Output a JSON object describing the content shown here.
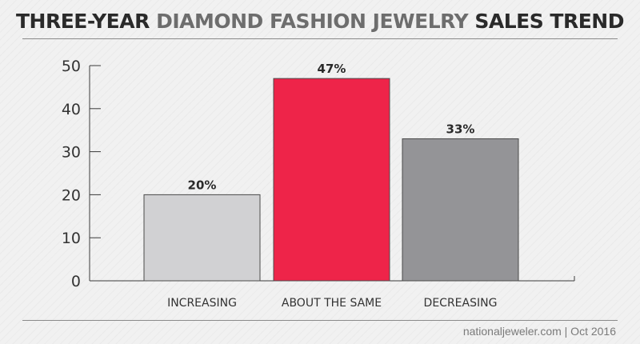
{
  "title": {
    "part1": "THREE-YEAR",
    "part2": "DIAMOND FASHION JEWELRY",
    "part3": "SALES TREND"
  },
  "footer": {
    "source": "nationaljeweler.com | Oct 2016"
  },
  "colors": {
    "increasing": "#d1d1d3",
    "about_the_same": "#ee2449",
    "decreasing": "#949497",
    "title_dark": "#2a2a2a",
    "title_gray": "#6d6d6d"
  },
  "chart_data": {
    "type": "bar",
    "title": "THREE-YEAR DIAMOND FASHION JEWELRY SALES TREND",
    "categories": [
      "INCREASING",
      "ABOUT THE SAME",
      "DECREASING"
    ],
    "values": [
      20,
      47,
      33
    ],
    "data_labels": [
      "20%",
      "47%",
      "33%"
    ],
    "yticks": [
      0,
      10,
      20,
      30,
      40,
      50
    ],
    "ylim": [
      0,
      50
    ],
    "grid": false,
    "legend": "none",
    "xlabel": "",
    "ylabel": ""
  }
}
